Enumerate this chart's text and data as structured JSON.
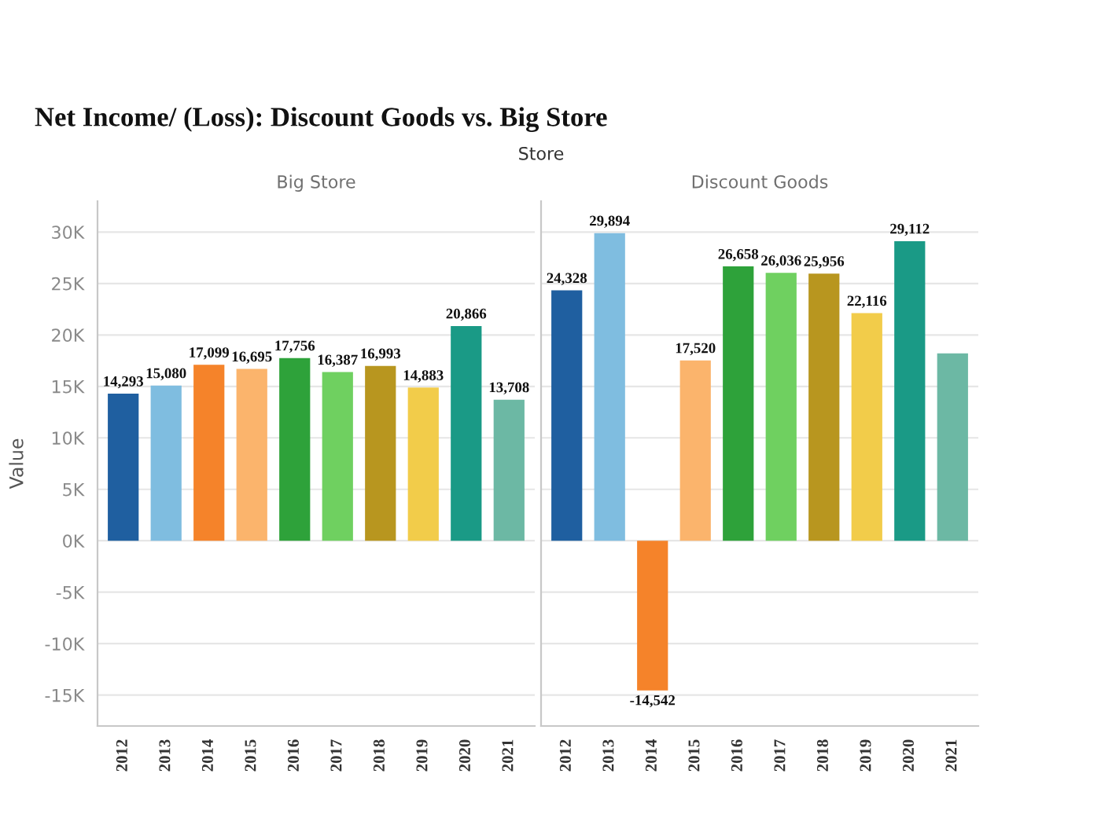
{
  "chart_data": [
    {
      "type": "bar",
      "title": "Net Income/ (Loss): Discount Goods vs. Big Store",
      "subtitle": "Big Store",
      "ylabel": "Value",
      "categories": [
        "2012",
        "2013",
        "2014",
        "2015",
        "2016",
        "2017",
        "2018",
        "2019",
        "2020",
        "2021"
      ],
      "values": [
        14293,
        15080,
        17099,
        16695,
        17756,
        16387,
        16993,
        14883,
        20866,
        13708
      ],
      "value_labels": [
        "14,293",
        "15,080",
        "17,099",
        "16,695",
        "17,756",
        "16,387",
        "16,993",
        "14,883",
        "20,866",
        "13,708"
      ],
      "colors": [
        "#1f5fa0",
        "#7fbde0",
        "#f5832a",
        "#fbb46c",
        "#2ea23a",
        "#6fd060",
        "#b8961f",
        "#f2cc4a",
        "#1a9a86",
        "#6cb8a4"
      ],
      "ylim": [
        -18000,
        33000
      ],
      "yticks": [
        {
          "value": -15000,
          "label": "-15K"
        },
        {
          "value": -10000,
          "label": "-10K"
        },
        {
          "value": -5000,
          "label": "-5K"
        },
        {
          "value": 0,
          "label": "0K"
        },
        {
          "value": 5000,
          "label": "5K"
        },
        {
          "value": 10000,
          "label": "10K"
        },
        {
          "value": 15000,
          "label": "15K"
        },
        {
          "value": 20000,
          "label": "20K"
        },
        {
          "value": 25000,
          "label": "25K"
        },
        {
          "value": 30000,
          "label": "30K"
        }
      ],
      "grid": "y"
    },
    {
      "type": "bar",
      "subtitle": "Discount Goods",
      "annotations": [
        "Store"
      ],
      "categories": [
        "2012",
        "2013",
        "2014",
        "2015",
        "2016",
        "2017",
        "2018",
        "2019",
        "2020",
        "2021"
      ],
      "values": [
        24328,
        29894,
        -14542,
        17520,
        26658,
        26036,
        25956,
        22116,
        29112,
        18200
      ],
      "value_labels": [
        "24,328",
        "29,894",
        "-14,542",
        "17,520",
        "26,658",
        "26,036",
        "25,956",
        "22,116",
        "29,112",
        null
      ],
      "colors": [
        "#1f5fa0",
        "#7fbde0",
        "#f5832a",
        "#fbb46c",
        "#2ea23a",
        "#6fd060",
        "#b8961f",
        "#f2cc4a",
        "#1a9a86",
        "#6cb8a4"
      ],
      "ylim": [
        -18000,
        33000
      ],
      "yticks": [
        -15000,
        -10000,
        -5000,
        0,
        5000,
        10000,
        15000,
        20000,
        25000,
        30000
      ],
      "grid": "y",
      "tick_labels": "x"
    }
  ]
}
